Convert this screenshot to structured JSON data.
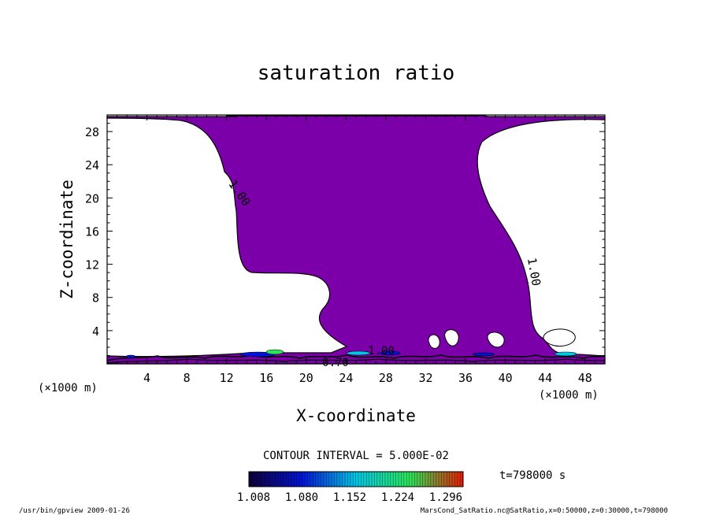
{
  "chart_data": {
    "type": "contour",
    "title": "saturation ratio",
    "xlabel": "X-coordinate",
    "ylabel": "Z-coordinate",
    "x_unit": "(×1000 m)",
    "y_unit": "(×1000 m)",
    "xlim": [
      0,
      50
    ],
    "ylim": [
      0,
      30
    ],
    "x_ticks": [
      4,
      8,
      12,
      16,
      20,
      24,
      28,
      32,
      36,
      40,
      44,
      48
    ],
    "y_ticks": [
      4,
      8,
      12,
      16,
      20,
      24,
      28
    ],
    "contour_interval_text": "CONTOUR INTERVAL = 5.000E-02",
    "contour_label": "1.00",
    "low_label": "0.70",
    "colorbar": {
      "ticks": [
        "1.008",
        "1.080",
        "1.152",
        "1.224",
        "1.296"
      ],
      "colors": [
        "#10003a",
        "#0014d8",
        "#00c8e6",
        "#2ce65a",
        "#e81a00"
      ]
    },
    "fill_color": "#7b00a9",
    "time_label": "t=798000 s",
    "footer_left": "/usr/bin/gpview   2009-01-26",
    "footer_right": "MarsCond_SatRatio.nc@SatRatio,x=0:50000,z=0:30000,t=798000"
  }
}
